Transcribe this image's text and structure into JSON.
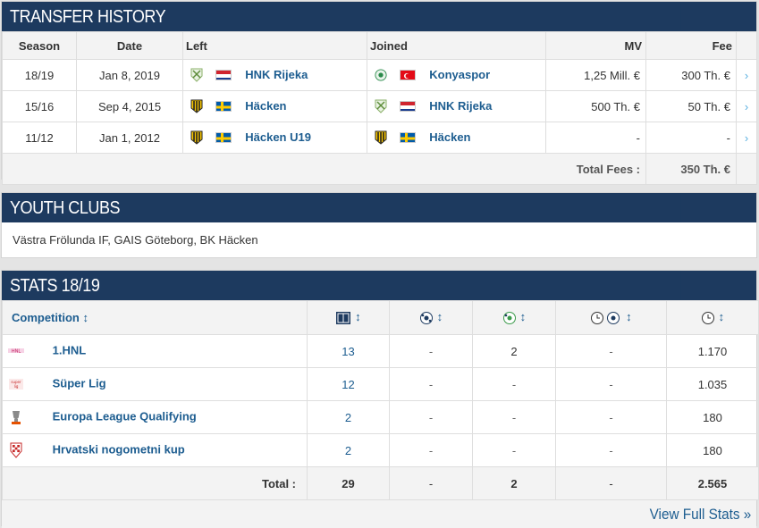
{
  "transfer": {
    "title": "TRANSFER HISTORY",
    "headers": {
      "season": "Season",
      "date": "Date",
      "left": "Left",
      "joined": "Joined",
      "mv": "MV",
      "fee": "Fee"
    },
    "rows": [
      {
        "season": "18/19",
        "date": "Jan 8, 2019",
        "left_club": "HNK Rijeka",
        "left_crest": "rijeka-crest",
        "left_flag": "croatia-flag",
        "joined_club": "Konyaspor",
        "joined_crest": "konyaspor-crest",
        "joined_flag": "turkey-flag",
        "mv": "1,25 Mill. €",
        "fee": "300 Th. €"
      },
      {
        "season": "15/16",
        "date": "Sep 4, 2015",
        "left_club": "Häcken",
        "left_crest": "hacken-crest",
        "left_flag": "sweden-flag",
        "joined_club": "HNK Rijeka",
        "joined_crest": "rijeka-crest",
        "joined_flag": "croatia-flag",
        "mv": "500 Th. €",
        "fee": "50 Th. €"
      },
      {
        "season": "11/12",
        "date": "Jan 1, 2012",
        "left_club": "Häcken U19",
        "left_crest": "hacken-crest",
        "left_flag": "sweden-flag",
        "joined_club": "Häcken",
        "joined_crest": "hacken-crest",
        "joined_flag": "sweden-flag",
        "mv": "-",
        "fee": "-"
      }
    ],
    "total_label": "Total Fees :",
    "total_value": "350 Th. €",
    "arrow": "›"
  },
  "youth": {
    "title": "YOUTH CLUBS",
    "text": "Västra Frölunda IF, GAIS Göteborg, BK Häcken"
  },
  "stats": {
    "title": "STATS 18/19",
    "competition_header": "Competition",
    "sort_glyph": "↕",
    "column_icons": [
      "pitch-appearances-icon",
      "ball-goals-icon",
      "assists-icon",
      "minutes-per-goal-icon",
      "minutes-played-icon"
    ],
    "rows": [
      {
        "competition": "1.HNL",
        "icon": "hnl-logo-icon",
        "apps": "13",
        "goals": "-",
        "assists": "2",
        "mpg": "-",
        "minutes": "1.170"
      },
      {
        "competition": "Süper Lig",
        "icon": "super-lig-logo-icon",
        "apps": "12",
        "goals": "-",
        "assists": "-",
        "mpg": "-",
        "minutes": "1.035"
      },
      {
        "competition": "Europa League Qualifying",
        "icon": "europa-league-logo-icon",
        "apps": "2",
        "goals": "-",
        "assists": "-",
        "mpg": "-",
        "minutes": "180"
      },
      {
        "competition": "Hrvatski nogometni kup",
        "icon": "croatian-cup-logo-icon",
        "apps": "2",
        "goals": "-",
        "assists": "-",
        "mpg": "-",
        "minutes": "180"
      }
    ],
    "total": {
      "label": "Total :",
      "apps": "29",
      "goals": "-",
      "assists": "2",
      "mpg": "-",
      "minutes": "2.565"
    },
    "view_full": "View Full Stats »"
  }
}
